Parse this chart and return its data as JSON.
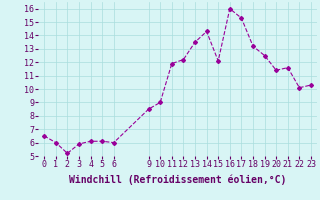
{
  "x": [
    0,
    1,
    2,
    3,
    4,
    5,
    6,
    9,
    10,
    11,
    12,
    13,
    14,
    15,
    16,
    17,
    18,
    19,
    20,
    21,
    22,
    23
  ],
  "y": [
    6.5,
    6.0,
    5.2,
    5.9,
    6.1,
    6.1,
    6.0,
    8.5,
    9.0,
    11.9,
    12.2,
    13.5,
    14.3,
    12.1,
    16.0,
    15.3,
    13.2,
    12.5,
    11.4,
    11.6,
    10.1,
    10.3
  ],
  "line_color": "#990099",
  "marker": "D",
  "marker_size": 2,
  "bg_color": "#d8f5f5",
  "grid_color": "#aadddd",
  "xlabel": "Windchill (Refroidissement éolien,°C)",
  "xlabel_color": "#660066",
  "xlabel_fontsize": 7,
  "tick_color": "#660066",
  "tick_fontsize": 6,
  "ylim": [
    5,
    16.5
  ],
  "yticks": [
    5,
    6,
    7,
    8,
    9,
    10,
    11,
    12,
    13,
    14,
    15,
    16
  ],
  "xticks": [
    0,
    1,
    2,
    3,
    4,
    5,
    6,
    9,
    10,
    11,
    12,
    13,
    14,
    15,
    16,
    17,
    18,
    19,
    20,
    21,
    22,
    23
  ],
  "font_family": "monospace"
}
